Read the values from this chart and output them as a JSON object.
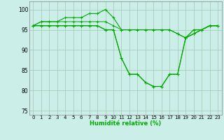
{
  "xlabel": "Humidité relative (%)",
  "x_ticks": [
    0,
    1,
    2,
    3,
    4,
    5,
    6,
    7,
    8,
    9,
    10,
    11,
    12,
    13,
    14,
    15,
    16,
    17,
    18,
    19,
    20,
    21,
    22,
    23
  ],
  "ylim": [
    74,
    102
  ],
  "xlim": [
    -0.5,
    23.5
  ],
  "yticks": [
    75,
    80,
    85,
    90,
    95,
    100
  ],
  "background_color": "#cceee8",
  "grid_color": "#aaccbb",
  "line_color": "#00aa00",
  "series": [
    [
      96,
      97,
      97,
      97,
      98,
      98,
      98,
      99,
      99,
      100,
      98,
      95,
      95,
      95,
      95,
      95,
      95,
      95,
      94,
      93,
      94,
      95,
      96,
      96
    ],
    [
      96,
      97,
      97,
      97,
      97,
      97,
      97,
      97,
      97,
      97,
      96,
      95,
      95,
      95,
      95,
      95,
      95,
      95,
      94,
      93,
      94,
      95,
      96,
      96
    ],
    [
      96,
      96,
      96,
      96,
      96,
      96,
      96,
      96,
      96,
      95,
      95,
      88,
      84,
      84,
      82,
      81,
      81,
      84,
      84,
      93,
      95,
      95,
      96,
      96
    ],
    [
      96,
      96,
      96,
      96,
      96,
      96,
      96,
      96,
      96,
      95,
      95,
      88,
      84,
      84,
      82,
      81,
      81,
      84,
      84,
      93,
      94,
      95,
      96,
      96
    ]
  ]
}
